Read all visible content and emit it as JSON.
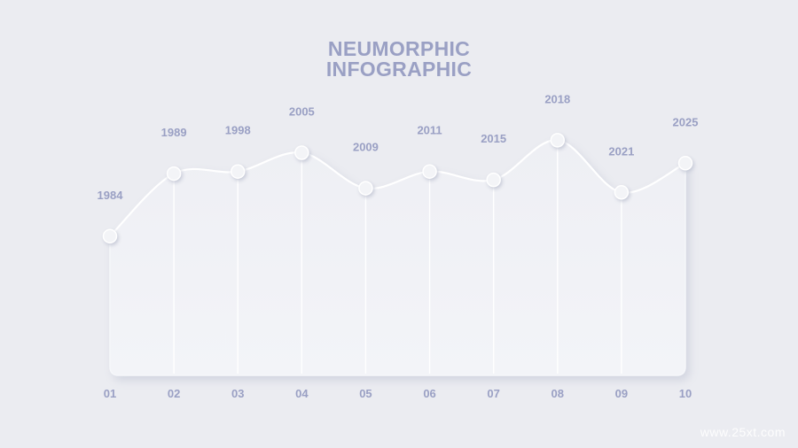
{
  "colors": {
    "background": "#ebecf1",
    "label": "#9aa0c4",
    "panel_light": "#f6f7fa",
    "panel_shadow": "#d6d8e2",
    "marker": "#f3f4f7"
  },
  "watermark": "www.25xt.com",
  "chart_data": {
    "type": "area",
    "title": "NEUMORPHIC\nINFOGRAPHIC",
    "title_lines": [
      "NEUMORPHIC",
      "INFOGRAPHIC"
    ],
    "categories": [
      "01",
      "02",
      "03",
      "04",
      "05",
      "06",
      "07",
      "08",
      "09",
      "10"
    ],
    "point_labels": [
      "1984",
      "1989",
      "1998",
      "2005",
      "2009",
      "2011",
      "2015",
      "2018",
      "2021",
      "2025"
    ],
    "values": [
      55,
      85,
      86,
      95,
      78,
      86,
      82,
      101,
      76,
      90
    ],
    "ylim": [
      -10,
      130
    ],
    "grid": false,
    "legend": "none"
  }
}
